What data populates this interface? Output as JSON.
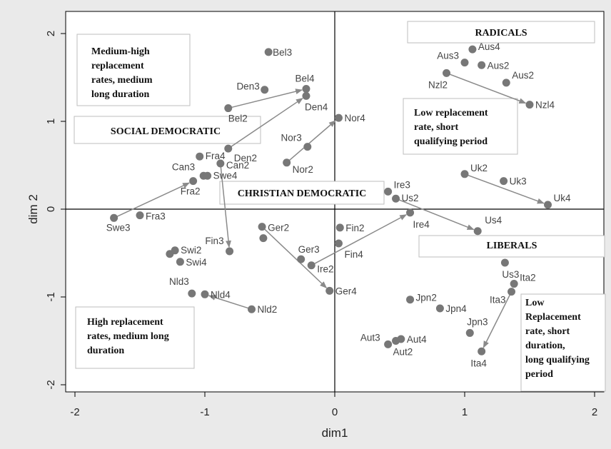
{
  "chart_data": {
    "type": "scatter",
    "xlabel": "dim1",
    "ylabel": "dim 2",
    "xlim": [
      -2.1,
      2.1
    ],
    "ylim": [
      -2.1,
      2.1
    ],
    "xticks": [
      "-2",
      "-1",
      "0",
      "1",
      "2"
    ],
    "yticks": [
      "-2",
      "-1",
      "0",
      "1",
      "2"
    ],
    "grid": false,
    "points": [
      {
        "label": "Bel3",
        "x": -0.51,
        "y": 1.79
      },
      {
        "label": "Bel4",
        "x": -0.22,
        "y": 1.37
      },
      {
        "label": "Den4",
        "x": -0.22,
        "y": 1.29
      },
      {
        "label": "Den3",
        "x": -0.54,
        "y": 1.36
      },
      {
        "label": "Bel2",
        "x": -0.82,
        "y": 1.15
      },
      {
        "label": "Den2",
        "x": -0.82,
        "y": 0.69
      },
      {
        "label": "Fra4",
        "x": -1.04,
        "y": 0.6
      },
      {
        "label": "Can2",
        "x": -0.88,
        "y": 0.52
      },
      {
        "label": "Can3",
        "x": -1.01,
        "y": 0.38
      },
      {
        "label": "Swe4",
        "x": -0.98,
        "y": 0.38
      },
      {
        "label": "Fra2",
        "x": -1.09,
        "y": 0.32
      },
      {
        "label": "Swe3",
        "x": -1.7,
        "y": -0.1
      },
      {
        "label": "Fra3",
        "x": -1.5,
        "y": -0.07
      },
      {
        "label": "Nor4",
        "x": 0.03,
        "y": 1.04
      },
      {
        "label": "Nor3",
        "x": -0.21,
        "y": 0.71
      },
      {
        "label": "Nor2",
        "x": -0.37,
        "y": 0.53
      },
      {
        "label": "Fin3",
        "x": -0.81,
        "y": -0.48
      },
      {
        "label": "Ger2",
        "x": -0.56,
        "y": -0.2
      },
      {
        "label": "Ger2b",
        "x": -0.55,
        "y": -0.33
      },
      {
        "label": "Ger3",
        "x": -0.26,
        "y": -0.57
      },
      {
        "label": "Ire2",
        "x": -0.18,
        "y": -0.64
      },
      {
        "label": "Ger4",
        "x": -0.04,
        "y": -0.93
      },
      {
        "label": "Fin2",
        "x": 0.04,
        "y": -0.21
      },
      {
        "label": "Fin4",
        "x": 0.03,
        "y": -0.39
      },
      {
        "label": "Swi2",
        "x": -1.23,
        "y": -0.47
      },
      {
        "label": "Swi2b",
        "x": -1.27,
        "y": -0.51
      },
      {
        "label": "Swi4",
        "x": -1.19,
        "y": -0.6
      },
      {
        "label": "Nld3",
        "x": -1.1,
        "y": -0.96
      },
      {
        "label": "Nld4",
        "x": -1.0,
        "y": -0.97
      },
      {
        "label": "Nld2",
        "x": -0.64,
        "y": -1.14
      },
      {
        "label": "Ire3",
        "x": 0.41,
        "y": 0.2
      },
      {
        "label": "Us2",
        "x": 0.47,
        "y": 0.12
      },
      {
        "label": "Ire4",
        "x": 0.58,
        "y": -0.04
      },
      {
        "label": "Us4",
        "x": 1.1,
        "y": -0.25
      },
      {
        "label": "Uk2",
        "x": 1.0,
        "y": 0.4
      },
      {
        "label": "Uk3",
        "x": 1.3,
        "y": 0.32
      },
      {
        "label": "Uk4",
        "x": 1.64,
        "y": 0.05
      },
      {
        "label": "Aus4",
        "x": 1.06,
        "y": 1.82
      },
      {
        "label": "Aus3",
        "x": 1.0,
        "y": 1.67
      },
      {
        "label": "Aus2",
        "x": 1.13,
        "y": 1.64
      },
      {
        "label": "Nzl2",
        "x": 0.86,
        "y": 1.55
      },
      {
        "label": "Aus2b",
        "x": 1.32,
        "y": 1.44
      },
      {
        "label": "Nzl4",
        "x": 1.5,
        "y": 1.19
      },
      {
        "label": "Us3",
        "x": 1.31,
        "y": -0.61
      },
      {
        "label": "Ita2",
        "x": 1.38,
        "y": -0.85
      },
      {
        "label": "Ita3",
        "x": 1.36,
        "y": -0.94
      },
      {
        "label": "Jpn2",
        "x": 0.58,
        "y": -1.03
      },
      {
        "label": "Jpn4",
        "x": 0.81,
        "y": -1.13
      },
      {
        "label": "Jpn3",
        "x": 1.04,
        "y": -1.41
      },
      {
        "label": "Ita4",
        "x": 1.13,
        "y": -1.62
      },
      {
        "label": "Aut3",
        "x": 0.41,
        "y": -1.54
      },
      {
        "label": "Aut4",
        "x": 0.51,
        "y": -1.48
      },
      {
        "label": "Aut2",
        "x": 0.47,
        "y": -1.5
      }
    ],
    "arrows": [
      {
        "from": [
          -0.82,
          1.15
        ],
        "to": [
          -0.22,
          1.37
        ]
      },
      {
        "from": [
          -0.82,
          0.69
        ],
        "to": [
          -0.22,
          1.29
        ]
      },
      {
        "from": [
          -1.7,
          -0.1
        ],
        "to": [
          -1.09,
          0.32
        ]
      },
      {
        "from": [
          -0.88,
          0.52
        ],
        "to": [
          -0.81,
          -0.48
        ]
      },
      {
        "from": [
          -0.37,
          0.53
        ],
        "to": [
          0.03,
          1.04
        ]
      },
      {
        "from": [
          -0.56,
          -0.2
        ],
        "to": [
          -0.04,
          -0.93
        ]
      },
      {
        "from": [
          -0.18,
          -0.64
        ],
        "to": [
          0.58,
          -0.04
        ]
      },
      {
        "from": [
          0.47,
          0.12
        ],
        "to": [
          1.1,
          -0.25
        ]
      },
      {
        "from": [
          1.0,
          0.4
        ],
        "to": [
          1.64,
          0.05
        ]
      },
      {
        "from": [
          0.86,
          1.55
        ],
        "to": [
          1.5,
          1.19
        ]
      },
      {
        "from": [
          1.36,
          -0.94
        ],
        "to": [
          1.13,
          -1.62
        ]
      },
      {
        "from": [
          -0.64,
          -1.14
        ],
        "to": [
          -1.0,
          -0.97
        ]
      }
    ],
    "annotations": [
      {
        "lines": [
          "RADICALS"
        ],
        "align": "center"
      },
      {
        "lines": [
          "Medium-high",
          "replacement",
          "rates, medium",
          "long duration"
        ],
        "align": "left"
      },
      {
        "lines": [
          "SOCIAL DEMOCRATIC"
        ],
        "align": "center"
      },
      {
        "lines": [
          "Low replacement",
          "rate, short",
          "qualifying period"
        ],
        "align": "left"
      },
      {
        "lines": [
          "CHRISTIAN DEMOCRATIC"
        ],
        "align": "center"
      },
      {
        "lines": [
          "LIBERALS"
        ],
        "align": "center"
      },
      {
        "lines": [
          "High replacement",
          "rates, medium long",
          "duration"
        ],
        "align": "left"
      },
      {
        "lines": [
          "Low",
          "Replacement",
          "rate, short",
          "duration,",
          "long qualifying",
          "period"
        ],
        "align": "left"
      }
    ]
  }
}
